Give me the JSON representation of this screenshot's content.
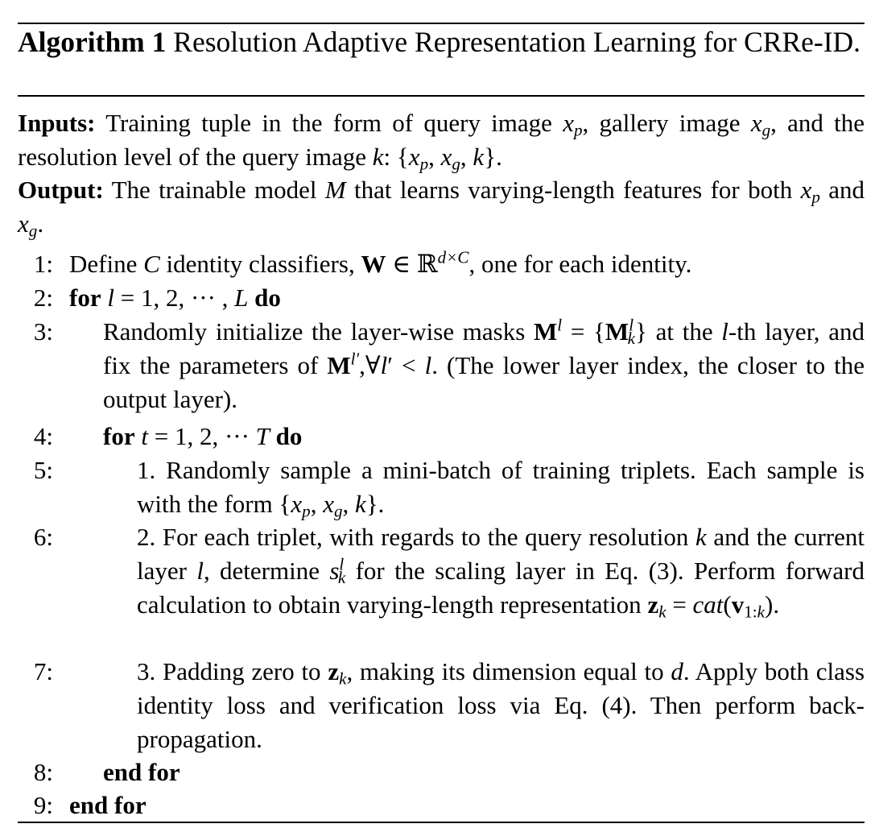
{
  "caption": {
    "label": "Algorithm 1",
    "title": "Resolution Adaptive Representation Learning for CRRe-ID."
  },
  "inputs": {
    "label": "Inputs:",
    "text1": "Training tuple in the form of query image",
    "text2": ", gallery image",
    "text3": ", and the resolution level of the query image",
    "text4": ":"
  },
  "output": {
    "label": "Output:",
    "text1": "The trainable model",
    "text2": "that learns varying-length features for both",
    "text3": "and"
  },
  "steps": {
    "s1": {
      "num": "1:",
      "a": "Define",
      "b": "identity classifiers,",
      "c": ", one for each identity."
    },
    "s2": {
      "num": "2:",
      "kw_for": "for",
      "kw_do": "do"
    },
    "s3": {
      "num": "3:",
      "a": "Randomly initialize the layer-wise masks",
      "b": "at the",
      "c": "-th layer, and fix the parameters of",
      "d": "(The lower layer index, the closer to the output layer)."
    },
    "s4": {
      "num": "4:",
      "kw_for": "for",
      "kw_do": "do"
    },
    "s5": {
      "num": "5:",
      "a": "1. Randomly sample a mini-batch of training triplets. Each sample is with the form"
    },
    "s6": {
      "num": "6:",
      "a": "2. For each triplet, with regards to the query resolution",
      "b": "and the current layer",
      "c": ", determine",
      "d": "for the scaling layer in Eq. (3). Perform forward calculation to obtain varying-length representation"
    },
    "s7": {
      "num": "7:",
      "a": "3. Padding zero to",
      "b": ", making its dimension equal to",
      "c": "Apply both class identity loss and verification loss via Eq. (4). Then perform back-propagation."
    },
    "s8": {
      "num": "8:",
      "kw": "end for"
    },
    "s9": {
      "num": "9:",
      "kw": "end for"
    }
  }
}
